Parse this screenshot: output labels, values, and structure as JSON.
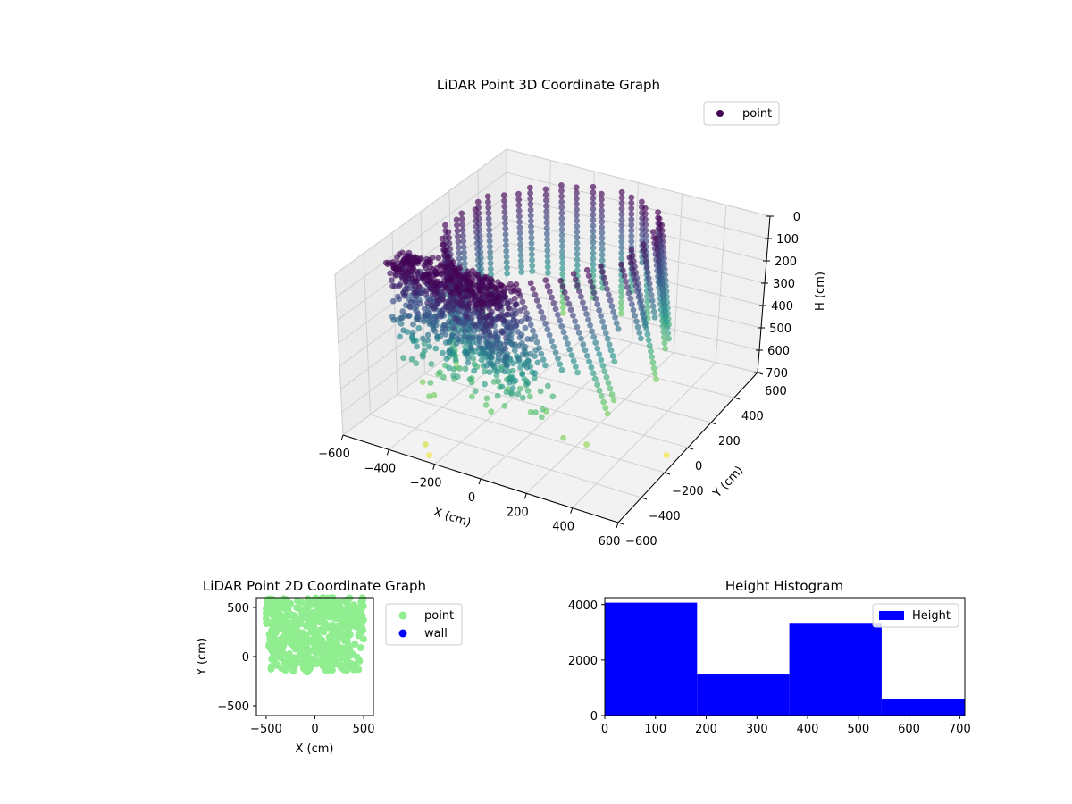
{
  "figure": {
    "background": "#ffffff"
  },
  "chart_data": [
    {
      "type": "scatter",
      "title": "LiDAR Point 3D Coordinate Graph",
      "xlabel": "X (cm)",
      "ylabel": "Y (cm)",
      "zlabel": "H (cm)",
      "xlim": [
        -600,
        600
      ],
      "ylim": [
        -600,
        600
      ],
      "zlim": [
        0,
        700
      ],
      "z_inverted": true,
      "xticks": [
        "−600",
        "−400",
        "−200",
        "0",
        "200",
        "400",
        "600"
      ],
      "yticks": [
        "−600",
        "−400",
        "−200",
        "0",
        "200",
        "400",
        "600"
      ],
      "zticks": [
        "0",
        "100",
        "200",
        "300",
        "400",
        "500",
        "600",
        "700"
      ],
      "colormap": "viridis",
      "legend": {
        "entries": [
          "point"
        ],
        "placement": "top-right",
        "marker_color": "#440154"
      },
      "series": [
        {
          "name": "point",
          "description_points": [
            {
              "x": -560,
              "y": 0,
              "h": 30
            },
            {
              "x": 560,
              "y": 0,
              "h": 30
            },
            {
              "x": 0,
              "y": 560,
              "h": 30
            },
            {
              "x": 0,
              "y": -560,
              "h": 30
            },
            {
              "x": -350,
              "y": -300,
              "h": 200
            },
            {
              "x": 350,
              "y": -300,
              "h": 200
            },
            {
              "x": 150,
              "y": -480,
              "h": 560
            },
            {
              "x": 250,
              "y": -540,
              "h": 620
            },
            {
              "x": 100,
              "y": -450,
              "h": 650
            },
            {
              "x": 160,
              "y": 180,
              "h": 690
            },
            {
              "x": 180,
              "y": 130,
              "h": 700
            },
            {
              "x": 590,
              "y": 230,
              "h": 700
            }
          ]
        }
      ]
    },
    {
      "type": "scatter",
      "title": "LiDAR Point 2D Coordinate Graph",
      "xlabel": "X (cm)",
      "ylabel": "Y (cm)",
      "xlim": [
        -600,
        600
      ],
      "ylim": [
        -600,
        600
      ],
      "xticks": [
        "−500",
        "0",
        "500"
      ],
      "yticks": [
        "−500",
        "0",
        "500"
      ],
      "legend": {
        "entries": [
          "point",
          "wall"
        ],
        "placement": "outside-right",
        "colors": [
          "#90ee90",
          "#0000ff"
        ]
      },
      "series": [
        {
          "name": "point",
          "color": "#90ee90",
          "extent": {
            "x": [
              -500,
              500
            ],
            "y": [
              -160,
              600
            ]
          }
        },
        {
          "name": "wall",
          "color": "#0000ff",
          "values": []
        }
      ]
    },
    {
      "type": "bar",
      "title": "Height Histogram",
      "xlim": [
        0,
        710
      ],
      "ylim": [
        0,
        4250
      ],
      "xticks": [
        "0",
        "100",
        "200",
        "300",
        "400",
        "500",
        "600",
        "700"
      ],
      "yticks": [
        "0",
        "2000",
        "4000"
      ],
      "legend": {
        "entries": [
          "Height"
        ],
        "placement": "top-right"
      },
      "series": [
        {
          "name": "Height",
          "color": "#0000ff",
          "bin_edges": [
            0,
            182,
            364,
            546,
            710
          ],
          "values": [
            4070,
            1480,
            3340,
            610
          ]
        }
      ]
    }
  ]
}
